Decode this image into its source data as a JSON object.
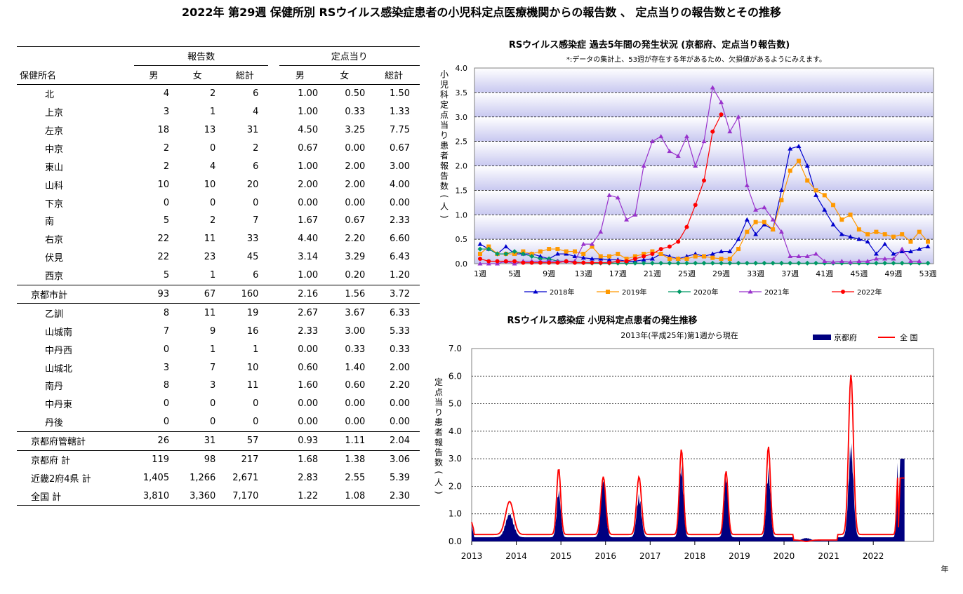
{
  "page_title": "2022年 第29週 保健所別 RSウイルス感染症患者の小児科定点医療機関からの報告数 、 定点当りの報告数とその推移",
  "table": {
    "group_headers": [
      "報告数",
      "定点当り"
    ],
    "col_headers": [
      "保健所名",
      "男",
      "女",
      "総計",
      "男",
      "女",
      "総計"
    ],
    "rows": [
      {
        "name": "北",
        "cells": [
          "4",
          "2",
          "6",
          "1.00",
          "0.50",
          "1.50"
        ],
        "total": false
      },
      {
        "name": "上京",
        "cells": [
          "3",
          "1",
          "4",
          "1.00",
          "0.33",
          "1.33"
        ],
        "total": false
      },
      {
        "name": "左京",
        "cells": [
          "18",
          "13",
          "31",
          "4.50",
          "3.25",
          "7.75"
        ],
        "total": false
      },
      {
        "name": "中京",
        "cells": [
          "2",
          "0",
          "2",
          "0.67",
          "0.00",
          "0.67"
        ],
        "total": false
      },
      {
        "name": "東山",
        "cells": [
          "2",
          "4",
          "6",
          "1.00",
          "2.00",
          "3.00"
        ],
        "total": false
      },
      {
        "name": "山科",
        "cells": [
          "10",
          "10",
          "20",
          "2.00",
          "2.00",
          "4.00"
        ],
        "total": false
      },
      {
        "name": "下京",
        "cells": [
          "0",
          "0",
          "0",
          "0.00",
          "0.00",
          "0.00"
        ],
        "total": false
      },
      {
        "name": "南",
        "cells": [
          "5",
          "2",
          "7",
          "1.67",
          "0.67",
          "2.33"
        ],
        "total": false
      },
      {
        "name": "右京",
        "cells": [
          "22",
          "11",
          "33",
          "4.40",
          "2.20",
          "6.60"
        ],
        "total": false
      },
      {
        "name": "伏見",
        "cells": [
          "22",
          "23",
          "45",
          "3.14",
          "3.29",
          "6.43"
        ],
        "total": false
      },
      {
        "name": "西京",
        "cells": [
          "5",
          "1",
          "6",
          "1.00",
          "0.20",
          "1.20"
        ],
        "total": false
      },
      {
        "name": "京都市計",
        "cells": [
          "93",
          "67",
          "160",
          "2.16",
          "1.56",
          "3.72"
        ],
        "total": true,
        "border": true
      },
      {
        "name": "乙訓",
        "cells": [
          "8",
          "11",
          "19",
          "2.67",
          "3.67",
          "6.33"
        ],
        "total": false,
        "border": true
      },
      {
        "name": "山城南",
        "cells": [
          "7",
          "9",
          "16",
          "2.33",
          "3.00",
          "5.33"
        ],
        "total": false
      },
      {
        "name": "中丹西",
        "cells": [
          "0",
          "1",
          "1",
          "0.00",
          "0.33",
          "0.33"
        ],
        "total": false
      },
      {
        "name": "山城北",
        "cells": [
          "3",
          "7",
          "10",
          "0.60",
          "1.40",
          "2.00"
        ],
        "total": false
      },
      {
        "name": "南丹",
        "cells": [
          "8",
          "3",
          "11",
          "1.60",
          "0.60",
          "2.20"
        ],
        "total": false
      },
      {
        "name": "中丹東",
        "cells": [
          "0",
          "0",
          "0",
          "0.00",
          "0.00",
          "0.00"
        ],
        "total": false
      },
      {
        "name": "丹後",
        "cells": [
          "0",
          "0",
          "0",
          "0.00",
          "0.00",
          "0.00"
        ],
        "total": false
      },
      {
        "name": "京都府管轄計",
        "cells": [
          "26",
          "31",
          "57",
          "0.93",
          "1.11",
          "2.04"
        ],
        "total": true,
        "border": true
      },
      {
        "name": "京都府 計",
        "cells": [
          "119",
          "98",
          "217",
          "1.68",
          "1.38",
          "3.06"
        ],
        "total": true,
        "border": true
      },
      {
        "name": "近畿2府4県 計",
        "cells": [
          "1,405",
          "1,266",
          "2,671",
          "2.83",
          "2.55",
          "5.39"
        ],
        "total": true
      },
      {
        "name": "全国 計",
        "cells": [
          "3,810",
          "3,360",
          "7,170",
          "1.22",
          "1.08",
          "2.30"
        ],
        "total": true,
        "last": true
      }
    ]
  },
  "chart_data": [
    {
      "type": "line",
      "title": "RSウイルス感染症 過去5年間の発生状況 (京都府、定点当り報告数)",
      "subtitle": "*:データの集計上、53週が存在する年があるため、欠損値があるようにみえます。",
      "ylabel": "小児科定点当り患者報告数(人)",
      "ylim": [
        0,
        40
      ],
      "yticks": [
        "0.0",
        "0.5",
        "1.0",
        "1.5",
        "2.0",
        "2.5",
        "3.0",
        "3.5",
        "4.0"
      ],
      "ytick_values": [
        0,
        5,
        10,
        15,
        20,
        25,
        30,
        35,
        40
      ],
      "x_tick_labels": [
        {
          "week": 1,
          "label": "1週"
        },
        {
          "week": 5,
          "label": "5週"
        },
        {
          "week": 9,
          "label": "9週"
        },
        {
          "week": 13,
          "label": "13週"
        },
        {
          "week": 17,
          "label": "17週"
        },
        {
          "week": 21,
          "label": "21週"
        },
        {
          "week": 25,
          "label": "25週"
        },
        {
          "week": 29,
          "label": "29週"
        },
        {
          "week": 33,
          "label": "33週"
        },
        {
          "week": 37,
          "label": "37週"
        },
        {
          "week": 41,
          "label": "41週"
        },
        {
          "week": 45,
          "label": "45週"
        },
        {
          "week": 49,
          "label": "49週"
        },
        {
          "week": 53,
          "label": "53週"
        }
      ],
      "grid": true,
      "legend_position": "bottom",
      "series": [
        {
          "name": "2018年",
          "color": "#0000cc",
          "marker": "triangle",
          "values": [
            4,
            3,
            2,
            3.5,
            2,
            2,
            2,
            1.5,
            1,
            2,
            2,
            1.5,
            1.2,
            1,
            1,
            0.8,
            0.8,
            0.5,
            0.5,
            0.8,
            1,
            2,
            1.5,
            1,
            1.5,
            2,
            1.5,
            2,
            2.5,
            2.5,
            5,
            9,
            6,
            8,
            7,
            15,
            23.5,
            24,
            20,
            14,
            11,
            8,
            6,
            5.5,
            5,
            4.5,
            2,
            4,
            2,
            2.5,
            2.5,
            3,
            3.5
          ]
        },
        {
          "name": "2019年",
          "color": "#ff9900",
          "marker": "square",
          "values": [
            2,
            3.5,
            2,
            2,
            2,
            2.5,
            2,
            2.5,
            3,
            3,
            2.5,
            2.5,
            2,
            3.5,
            1.5,
            1.5,
            2,
            1,
            1.5,
            2,
            2.5,
            2,
            1,
            1,
            1,
            1.5,
            1.5,
            1.2,
            1,
            1,
            3,
            6.5,
            8.5,
            8.5,
            7,
            13,
            19,
            21,
            17,
            15,
            14,
            12,
            9,
            10,
            7,
            6,
            6.5,
            6,
            5.5,
            6,
            4.5,
            6.5,
            4.5
          ]
        },
        {
          "name": "2020年",
          "color": "#009966",
          "marker": "diamond",
          "values": [
            3,
            3,
            2,
            2,
            2.5,
            2,
            1.5,
            1,
            1,
            0.5,
            0.5,
            0.3,
            0.2,
            0.1,
            0.1,
            0.1,
            0.1,
            0.1,
            0.1,
            0.1,
            0.1,
            0.1,
            0.1,
            0.1,
            0.1,
            0.1,
            0.1,
            0.1,
            0.1,
            0.1,
            0.1,
            0.1,
            0.1,
            0.1,
            0.1,
            0.1,
            0.1,
            0.1,
            0.1,
            0.1,
            0.1,
            0.1,
            0.1,
            0.1,
            0.1,
            0.1,
            0.1,
            0.1,
            0.1,
            0.1,
            0.1,
            0.1,
            0.1
          ]
        },
        {
          "name": "2021年",
          "color": "#9933cc",
          "marker": "triangle",
          "values": [
            0,
            0,
            0,
            0.5,
            0,
            0.5,
            0.5,
            0.5,
            0.5,
            0.5,
            0.5,
            0.5,
            4,
            4,
            6.5,
            14,
            13.5,
            9,
            10,
            20,
            25,
            26,
            23,
            22,
            26,
            20,
            25,
            36,
            33,
            27,
            30,
            16,
            11,
            11.5,
            9,
            6.5,
            1.5,
            1.5,
            1.5,
            2,
            0.5,
            0.3,
            0.5,
            0.3,
            0.5,
            0.5,
            1,
            1,
            1,
            3,
            0.5,
            0.5
          ]
        },
        {
          "name": "2022年",
          "color": "#ff0000",
          "marker": "circle",
          "values": [
            1,
            0.5,
            0.5,
            0.5,
            0.5,
            0.2,
            0.2,
            0.2,
            0.2,
            0.2,
            0.5,
            0.2,
            0.2,
            0.2,
            0.2,
            0.2,
            0.5,
            0.5,
            1,
            1.5,
            2,
            3,
            3.5,
            4.5,
            7.5,
            12,
            17,
            27,
            30.5
          ]
        }
      ]
    },
    {
      "type": "area",
      "title": "RSウイルス感染症 小児科定点患者の発生推移",
      "subtitle": "2013年(平成25年)第1週から現在",
      "ylabel": "定点当り患者報告数(人)",
      "xlabel": "年",
      "ylim": [
        0,
        7
      ],
      "yticks": [
        "0.0",
        "1.0",
        "2.0",
        "3.0",
        "4.0",
        "5.0",
        "6.0",
        "7.0"
      ],
      "ytick_values": [
        0,
        1,
        2,
        3,
        4,
        5,
        6,
        7
      ],
      "years": [
        "2013",
        "2014",
        "2015",
        "2016",
        "2017",
        "2018",
        "2019",
        "2020",
        "2021",
        "2022"
      ],
      "grid": true,
      "legend_position": "top-right",
      "series": [
        {
          "name": "京都府",
          "color": "#000080",
          "style": "area"
        },
        {
          "name": "全 国",
          "color": "#ff0000",
          "style": "line"
        }
      ],
      "peaks": [
        {
          "year": 2013,
          "pref": 0.9,
          "nat": 1.4,
          "pos": 0.85,
          "w": 0.2
        },
        {
          "year": 2014,
          "pref": 1.8,
          "nat": 2.6,
          "pos": 0.95,
          "w": 0.1
        },
        {
          "year": 2015,
          "pref": 2.2,
          "nat": 2.3,
          "pos": 0.95,
          "w": 0.12
        },
        {
          "year": 2016,
          "pref": 1.6,
          "nat": 2.3,
          "pos": 0.75,
          "w": 0.12
        },
        {
          "year": 2017,
          "pref": 2.8,
          "nat": 3.3,
          "pos": 0.7,
          "w": 0.1
        },
        {
          "year": 2018,
          "pref": 2.4,
          "nat": 2.5,
          "pos": 0.7,
          "w": 0.1
        },
        {
          "year": 2019,
          "pref": 2.6,
          "nat": 3.4,
          "pos": 0.65,
          "w": 0.1
        },
        {
          "year": 2020,
          "pref": 0.1,
          "nat": 0.15,
          "pos": 0.5,
          "w": 0.2
        },
        {
          "year": 2021,
          "pref": 3.6,
          "nat": 6.0,
          "pos": 0.5,
          "w": 0.12
        },
        {
          "year": 2022,
          "pref": 3.0,
          "nat": 2.3,
          "pos": 0.55,
          "w": 0.06
        }
      ]
    }
  ]
}
